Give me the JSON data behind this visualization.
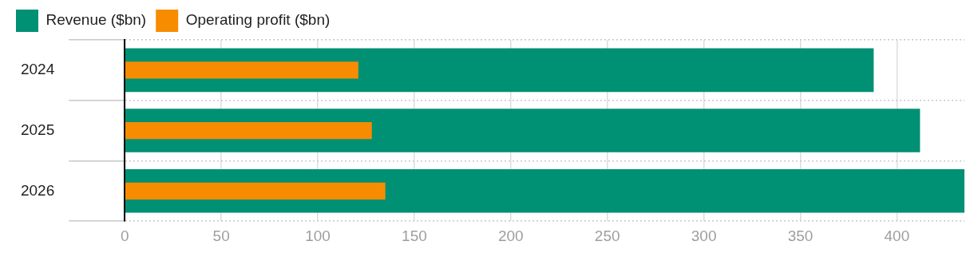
{
  "chart_data": {
    "type": "bar",
    "orientation": "horizontal",
    "categories": [
      "2024",
      "2025",
      "2026"
    ],
    "series": [
      {
        "name": "Revenue ($bn)",
        "color": "#009073",
        "values": [
          388,
          412,
          435
        ]
      },
      {
        "name": "Operating profit ($bn)",
        "color": "#f78c00",
        "values": [
          121,
          128,
          135
        ]
      }
    ],
    "xlim": [
      0,
      435
    ],
    "xticks": [
      0,
      50,
      100,
      150,
      200,
      250,
      300,
      350,
      400
    ],
    "grid": true,
    "legend": "top left"
  }
}
